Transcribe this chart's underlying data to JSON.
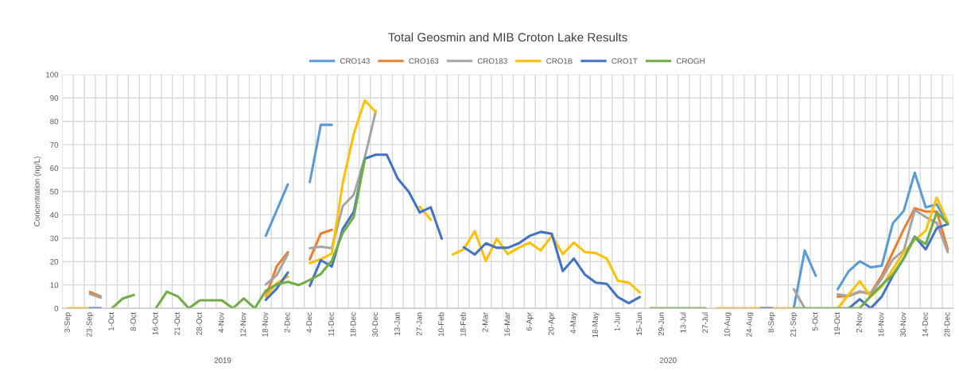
{
  "chart_data": {
    "type": "line",
    "title": "Total Geosmin and MIB Croton Lake Results",
    "ylabel": "Concentration (ng/L)",
    "categories": [
      "3-Sep",
      null,
      "23-Sep",
      null,
      "1-Oct",
      null,
      "8-Oct",
      null,
      "16-Oct",
      null,
      "21-Oct",
      null,
      "28-Oct",
      null,
      "4-Nov",
      null,
      "12-Nov",
      null,
      "18-Nov",
      null,
      "2-Dec",
      null,
      "4-Dec",
      null,
      "11-Dec",
      null,
      "18-Dec",
      null,
      "30-Dec",
      null,
      "13-Jan",
      null,
      "27-Jan",
      null,
      "10-Feb",
      null,
      "18-Feb",
      null,
      "2-Mar",
      null,
      "16-Mar",
      null,
      "6-Apr",
      null,
      "20-Apr",
      null,
      "4-May",
      null,
      "18-May",
      null,
      "1-Jun",
      null,
      "15-Jun",
      null,
      "29-Jun",
      null,
      "13-Jul",
      null,
      "27-Jul",
      null,
      "10-Aug",
      null,
      "24-Aug",
      null,
      "8-Sep",
      null,
      "21-Sep",
      null,
      "5-Oct",
      null,
      "19-Oct",
      null,
      "2-Nov",
      null,
      "16-Nov",
      null,
      "30-Nov",
      null,
      "14-Dec",
      null,
      "28-Dec"
    ],
    "series": [
      {
        "name": "CRO143",
        "color": "#5b9bd5",
        "values": [
          null,
          null,
          null,
          null,
          null,
          null,
          null,
          null,
          null,
          null,
          null,
          null,
          null,
          null,
          null,
          null,
          null,
          null,
          31,
          42,
          53,
          null,
          54,
          78.5,
          78.5,
          null,
          null,
          null,
          null,
          null,
          null,
          null,
          null,
          null,
          null,
          null,
          null,
          null,
          null,
          null,
          null,
          null,
          null,
          null,
          null,
          null,
          null,
          null,
          null,
          null,
          null,
          null,
          null,
          null,
          null,
          null,
          null,
          null,
          null,
          null,
          null,
          null,
          null,
          null,
          null,
          null,
          0,
          24.7,
          13.9,
          null,
          8.2,
          15.9,
          20.1,
          17.5,
          18.2,
          36.3,
          41.7,
          58,
          43.2,
          44.5,
          36
        ]
      },
      {
        "name": "CRO163",
        "color": "#ed7d31",
        "values": [
          null,
          null,
          7,
          5,
          null,
          null,
          null,
          null,
          null,
          null,
          null,
          null,
          null,
          null,
          null,
          null,
          null,
          null,
          5,
          18,
          24,
          null,
          21,
          32,
          33.6,
          null,
          null,
          null,
          null,
          null,
          null,
          null,
          null,
          null,
          null,
          null,
          null,
          null,
          null,
          null,
          null,
          null,
          null,
          null,
          null,
          null,
          null,
          null,
          null,
          null,
          null,
          null,
          null,
          null,
          null,
          null,
          null,
          null,
          null,
          null,
          null,
          null,
          null,
          null,
          null,
          null,
          null,
          null,
          null,
          null,
          5,
          5.3,
          7,
          6.5,
          13.9,
          23.9,
          33.8,
          42.8,
          41.4,
          41.4,
          25.2
        ]
      },
      {
        "name": "CRO183",
        "color": "#a5a5a5",
        "values": [
          null,
          null,
          6.2,
          4.5,
          null,
          null,
          null,
          null,
          null,
          null,
          null,
          null,
          null,
          null,
          null,
          null,
          null,
          null,
          10.2,
          14.2,
          23.2,
          null,
          25.7,
          26.4,
          25.7,
          43.8,
          48.6,
          64.5,
          84.4,
          null,
          null,
          null,
          null,
          null,
          null,
          null,
          null,
          null,
          null,
          null,
          null,
          null,
          null,
          null,
          null,
          null,
          null,
          null,
          null,
          null,
          null,
          null,
          null,
          null,
          null,
          null,
          null,
          null,
          null,
          null,
          null,
          null,
          null,
          null,
          null,
          null,
          8.2,
          0,
          null,
          null,
          6,
          5.3,
          7.3,
          6,
          12.7,
          20.9,
          24.7,
          42,
          39,
          36.6,
          24
        ]
      },
      {
        "name": "CRO1B",
        "color": "#ffc000",
        "values": [
          0,
          0,
          0,
          null,
          null,
          null,
          null,
          null,
          null,
          null,
          null,
          null,
          null,
          null,
          null,
          null,
          null,
          null,
          5,
          10.8,
          13.6,
          null,
          19.3,
          21,
          23.4,
          53.8,
          74.7,
          88.9,
          84,
          null,
          null,
          null,
          43.5,
          37.8,
          null,
          23,
          25.3,
          33,
          20.2,
          29.8,
          23.2,
          25.9,
          28.1,
          24.7,
          31,
          23.2,
          28.1,
          24.1,
          23.6,
          21.3,
          11.8,
          11,
          6.8,
          null,
          null,
          null,
          null,
          null,
          null,
          0,
          0,
          0,
          0,
          0,
          0,
          0,
          0,
          null,
          null,
          null,
          0,
          5.9,
          11.6,
          5,
          9.3,
          16.7,
          23.9,
          29.2,
          33.2,
          47.4,
          36.8
        ]
      },
      {
        "name": "CRO1T",
        "color": "#4472c4",
        "values": [
          null,
          null,
          0,
          0,
          null,
          null,
          null,
          null,
          null,
          null,
          null,
          null,
          null,
          null,
          null,
          null,
          null,
          null,
          3.6,
          8.5,
          15.3,
          null,
          9.6,
          20.6,
          17.9,
          34,
          41.3,
          64,
          65.7,
          65.7,
          55.5,
          49.8,
          41,
          43.2,
          29.8,
          null,
          26.1,
          23,
          27.8,
          25.9,
          25.9,
          27.8,
          31,
          32.7,
          31.9,
          15.9,
          21.3,
          14.5,
          11,
          10.5,
          4.8,
          2.2,
          4.8,
          null,
          null,
          null,
          null,
          null,
          null,
          null,
          null,
          null,
          null,
          0,
          0,
          null,
          null,
          null,
          null,
          null,
          null,
          0,
          3.9,
          0,
          5,
          13.9,
          21.3,
          30.7,
          25.2,
          34.3,
          36
        ]
      },
      {
        "name": "CROGH",
        "color": "#70ad47",
        "values": [
          null,
          null,
          null,
          null,
          0,
          4.2,
          5.7,
          null,
          0,
          7.1,
          5.1,
          0,
          3.4,
          3.4,
          3.4,
          0,
          4.2,
          0,
          7.6,
          10.2,
          11.3,
          9.9,
          12.1,
          14.7,
          20.4,
          32.3,
          39.1,
          64,
          null,
          null,
          null,
          null,
          null,
          null,
          null,
          null,
          null,
          null,
          null,
          null,
          null,
          null,
          null,
          null,
          null,
          null,
          null,
          null,
          null,
          null,
          null,
          null,
          null,
          0,
          0,
          0,
          0,
          0,
          0,
          null,
          null,
          null,
          null,
          null,
          null,
          null,
          0,
          0,
          0,
          0,
          0,
          0,
          0,
          5.3,
          9.9,
          14.4,
          21.3,
          30.3,
          27.5,
          41.1,
          36.3
        ]
      }
    ],
    "ylim": [
      0,
      100
    ],
    "yticks": [
      0,
      10,
      20,
      30,
      40,
      50,
      60,
      70,
      80,
      90,
      100
    ],
    "grid": true,
    "legend": "top",
    "marker": "none",
    "line_style": "solid",
    "annotations": [
      "2019",
      "2020"
    ]
  }
}
